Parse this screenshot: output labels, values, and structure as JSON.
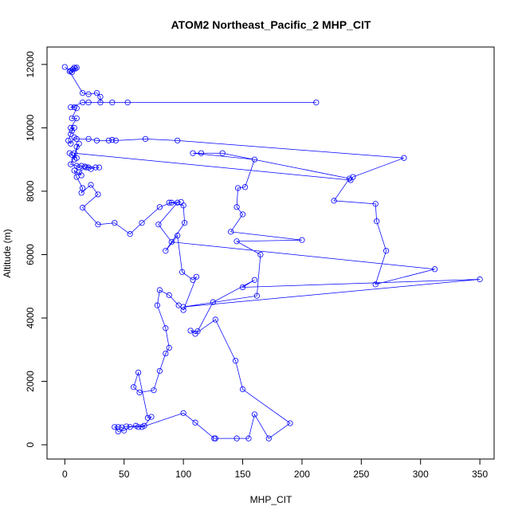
{
  "chart_data": {
    "type": "line",
    "title": "ATOM2 Northeast_Pacific_2 MHP_CIT",
    "xlabel": "MHP_CIT",
    "ylabel": "Altitude (m)",
    "xlim": [
      -15,
      362
    ],
    "ylim": [
      -450,
      12550
    ],
    "xticks": [
      0,
      50,
      100,
      150,
      200,
      250,
      300,
      350
    ],
    "yticks": [
      0,
      2000,
      4000,
      6000,
      8000,
      10000,
      12000
    ],
    "grid": false,
    "series_color": "#0000ff",
    "series": [
      {
        "markers": "open-circle",
        "points": [
          [
            0,
            11920
          ],
          [
            5,
            11800
          ],
          [
            6,
            11760
          ],
          [
            8,
            11900
          ],
          [
            9,
            11870
          ],
          [
            10,
            11900
          ],
          [
            7,
            11850
          ],
          [
            4,
            11780
          ],
          [
            15,
            11100
          ],
          [
            20,
            11060
          ],
          [
            27,
            11100
          ],
          [
            30,
            10980
          ],
          [
            30,
            10800
          ],
          [
            40,
            10800
          ],
          [
            53,
            10800
          ],
          [
            212,
            10800
          ],
          [
            20,
            10800
          ],
          [
            15,
            10800
          ],
          [
            5,
            10650
          ],
          [
            8,
            10650
          ],
          [
            10,
            10620
          ],
          [
            6,
            10300
          ],
          [
            10,
            10300
          ],
          [
            5,
            10000
          ],
          [
            8,
            10000
          ],
          [
            6,
            9900
          ],
          [
            5,
            9800
          ],
          [
            3,
            9600
          ],
          [
            5,
            9500
          ],
          [
            8,
            9700
          ],
          [
            10,
            9650
          ],
          [
            20,
            9650
          ],
          [
            27,
            9600
          ],
          [
            37,
            9600
          ],
          [
            40,
            9620
          ],
          [
            43,
            9600
          ],
          [
            68,
            9650
          ],
          [
            95,
            9600
          ],
          [
            286,
            9050
          ],
          [
            243,
            8450
          ],
          [
            241,
            8350
          ],
          [
            8,
            9200
          ],
          [
            10,
            9050
          ],
          [
            4,
            9200
          ],
          [
            6,
            9150
          ],
          [
            8,
            9000
          ],
          [
            10,
            9400
          ],
          [
            12,
            9500
          ],
          [
            5,
            8850
          ],
          [
            10,
            8800
          ],
          [
            12,
            8750
          ],
          [
            14,
            8800
          ],
          [
            17,
            8780
          ],
          [
            20,
            8750
          ],
          [
            22,
            8700
          ],
          [
            26,
            8750
          ],
          [
            29,
            8750
          ],
          [
            18,
            8750
          ],
          [
            12,
            8600
          ],
          [
            14,
            8500
          ],
          [
            8,
            8650
          ],
          [
            10,
            8450
          ],
          [
            15,
            8100
          ],
          [
            14,
            7950
          ],
          [
            22,
            8200
          ],
          [
            28,
            7900
          ],
          [
            15,
            7480
          ],
          [
            28,
            6950
          ],
          [
            42,
            7000
          ],
          [
            55,
            6650
          ],
          [
            65,
            7000
          ],
          [
            80,
            7500
          ],
          [
            90,
            7640
          ],
          [
            100,
            7550
          ],
          [
            101,
            7000
          ],
          [
            85,
            6120
          ],
          [
            95,
            6600
          ],
          [
            99,
            5450
          ],
          [
            108,
            5200
          ],
          [
            111,
            5300
          ],
          [
            100,
            4250
          ],
          [
            96,
            4400
          ],
          [
            88,
            4720
          ],
          [
            80,
            4880
          ],
          [
            78,
            4400
          ],
          [
            85,
            3680
          ],
          [
            88,
            3060
          ],
          [
            85,
            2880
          ],
          [
            80,
            2330
          ],
          [
            75,
            1720
          ],
          [
            63,
            1650
          ],
          [
            58,
            1820
          ],
          [
            62,
            2280
          ],
          [
            70,
            850
          ],
          [
            73,
            880
          ],
          [
            67,
            600
          ],
          [
            62,
            560
          ],
          [
            52,
            580
          ],
          [
            48,
            550
          ],
          [
            45,
            560
          ],
          [
            42,
            560
          ],
          [
            45,
            420
          ],
          [
            50,
            450
          ],
          [
            55,
            560
          ],
          [
            60,
            600
          ],
          [
            65,
            560
          ],
          [
            100,
            1000
          ],
          [
            110,
            700
          ],
          [
            126,
            200
          ],
          [
            127,
            200
          ],
          [
            145,
            200
          ],
          [
            155,
            200
          ],
          [
            160,
            960
          ],
          [
            172,
            200
          ],
          [
            190,
            680
          ],
          [
            150,
            1750
          ],
          [
            144,
            2650
          ],
          [
            127,
            3950
          ],
          [
            110,
            3500
          ],
          [
            106,
            3600
          ],
          [
            112,
            3580
          ],
          [
            125,
            4500
          ],
          [
            160,
            5200
          ],
          [
            150,
            4970
          ],
          [
            350,
            5220
          ],
          [
            100,
            4350
          ],
          [
            162,
            4700
          ],
          [
            165,
            6000
          ],
          [
            145,
            6420
          ],
          [
            200,
            6460
          ],
          [
            140,
            6720
          ],
          [
            150,
            7270
          ],
          [
            145,
            7500
          ],
          [
            146,
            8100
          ],
          [
            152,
            8130
          ],
          [
            160,
            9000
          ],
          [
            108,
            9200
          ],
          [
            115,
            9200
          ],
          [
            133,
            9200
          ],
          [
            240,
            8400
          ],
          [
            227,
            7700
          ],
          [
            262,
            7600
          ],
          [
            263,
            7050
          ],
          [
            271,
            6120
          ],
          [
            262,
            5060
          ],
          [
            312,
            5540
          ],
          [
            90,
            6400
          ],
          [
            79,
            6950
          ],
          [
            95,
            7640
          ],
          [
            88,
            7640
          ],
          [
            98,
            7660
          ]
        ]
      }
    ]
  }
}
